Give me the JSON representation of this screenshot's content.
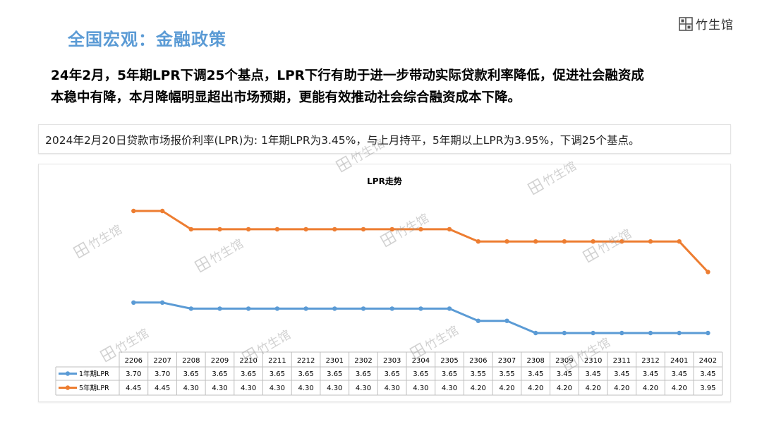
{
  "header": {
    "title": "全国宏观：金融政策",
    "logo_text": "竹生馆"
  },
  "headline": {
    "line1": "24年2月，5年期LPR下调25个基点，LPR下行有助于进一步带动实际贷款利率降低，促进社会融资成",
    "line2": "本稳中有降，本月降幅明显超出市场预期，更能有效推动社会综合融资成本下降。"
  },
  "info": {
    "text": "2024年2月20日贷款市场报价利率(LPR)为: 1年期LPR为3.45%，与上月持平，5年期以上LPR为3.95%，下调25个基点。"
  },
  "watermark": {
    "text": "竹生馆"
  },
  "colors": {
    "series_1y": "#5b9bd5",
    "series_5y": "#ed7d31",
    "title_accent": "#5b9bd5"
  },
  "chart_data": {
    "type": "line",
    "title": "LPR走势",
    "categories": [
      "2206",
      "2207",
      "2208",
      "2209",
      "2210",
      "2211",
      "2212",
      "2301",
      "2302",
      "2303",
      "2304",
      "2305",
      "2306",
      "2307",
      "2308",
      "2309",
      "2310",
      "2311",
      "2312",
      "2401",
      "2402"
    ],
    "series": [
      {
        "name": "1年期LPR",
        "display": [
          "3.70",
          "3.70",
          "3.65",
          "3.65",
          "3.65",
          "3.65",
          "3.65",
          "3.65",
          "3.65",
          "3.65",
          "3.65",
          "3.65",
          "3.55",
          "3.55",
          "3.45",
          "3.45",
          "3.45",
          "3.45",
          "3.45",
          "3.45",
          "3.45"
        ],
        "values": [
          3.7,
          3.7,
          3.65,
          3.65,
          3.65,
          3.65,
          3.65,
          3.65,
          3.65,
          3.65,
          3.65,
          3.65,
          3.55,
          3.55,
          3.45,
          3.45,
          3.45,
          3.45,
          3.45,
          3.45,
          3.45
        ]
      },
      {
        "name": "5年期LPR",
        "display": [
          "4.45",
          "4.45",
          "4.30",
          "4.30",
          "4.30",
          "4.30",
          "4.30",
          "4.30",
          "4.30",
          "4.30",
          "4.30",
          "4.30",
          "4.20",
          "4.20",
          "4.20",
          "4.20",
          "4.20",
          "4.20",
          "4.20",
          "4.20",
          "3.95"
        ],
        "values": [
          4.45,
          4.45,
          4.3,
          4.3,
          4.3,
          4.3,
          4.3,
          4.3,
          4.3,
          4.3,
          4.3,
          4.3,
          4.2,
          4.2,
          4.2,
          4.2,
          4.2,
          4.2,
          4.2,
          4.2,
          3.95
        ]
      }
    ],
    "ylim": [
      3.3,
      4.6
    ],
    "grid": false,
    "legend": "data-table"
  }
}
